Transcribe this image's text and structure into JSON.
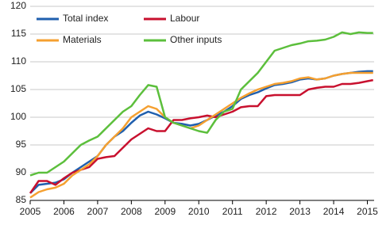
{
  "chart_data": {
    "type": "line",
    "x": [
      2005,
      2005.25,
      2005.5,
      2005.75,
      2006,
      2006.25,
      2006.5,
      2006.75,
      2007,
      2007.25,
      2007.5,
      2007.75,
      2008,
      2008.25,
      2008.5,
      2008.75,
      2009,
      2009.25,
      2009.5,
      2009.75,
      2010,
      2010.25,
      2010.5,
      2010.75,
      2011,
      2011.25,
      2011.5,
      2011.75,
      2012,
      2012.25,
      2012.5,
      2012.75,
      2013,
      2013.25,
      2013.5,
      2013.75,
      2014,
      2014.25,
      2014.5,
      2014.75,
      2015,
      2015.17
    ],
    "series": [
      {
        "name": "Total index",
        "color": "#1f5fae",
        "values": [
          86.3,
          87.8,
          88,
          88.2,
          88.8,
          90,
          91,
          92,
          93,
          95,
          96.5,
          97.5,
          99,
          100.3,
          101,
          100.5,
          99.8,
          99,
          98.8,
          98.5,
          98.8,
          99.5,
          100.3,
          101,
          102,
          103.3,
          104,
          104.5,
          105.2,
          105.8,
          106,
          106.3,
          106.8,
          107,
          106.8,
          107,
          107.5,
          107.8,
          108,
          108.2,
          108.3,
          108.3
        ]
      },
      {
        "name": "Labour",
        "color": "#c8102e",
        "values": [
          86.3,
          88.5,
          88.5,
          87.8,
          89,
          90,
          90.5,
          91,
          92.5,
          92.8,
          93,
          94.5,
          96,
          97,
          98,
          97.5,
          97.5,
          99.5,
          99.5,
          99.8,
          100,
          100.3,
          100,
          100.5,
          101,
          101.8,
          102,
          102,
          103.8,
          104,
          104,
          104,
          104,
          105,
          105.3,
          105.5,
          105.5,
          106,
          106,
          106.2,
          106.5,
          106.7
        ]
      },
      {
        "name": "Materials",
        "color": "#f5a030",
        "values": [
          85.5,
          86.5,
          87,
          87.3,
          88,
          89.5,
          90.5,
          91.5,
          93,
          95,
          96.5,
          98,
          100,
          101,
          102,
          101.5,
          100,
          99,
          98.5,
          98,
          98.5,
          99.5,
          100.5,
          101.5,
          102.5,
          103.5,
          104.3,
          105,
          105.5,
          106,
          106.2,
          106.5,
          107,
          107.2,
          106.8,
          107,
          107.5,
          107.8,
          108,
          108,
          108,
          108
        ]
      },
      {
        "name": "Other inputs",
        "color": "#5cbf3c",
        "values": [
          89.5,
          90,
          90,
          91,
          92,
          93.5,
          95,
          95.8,
          96.5,
          98,
          99.5,
          101,
          102,
          104,
          105.8,
          105.5,
          100,
          99,
          98.5,
          98,
          97.5,
          97.2,
          99.5,
          101,
          101.5,
          105,
          106.5,
          108,
          110,
          112,
          112.5,
          113,
          113.3,
          113.7,
          113.8,
          114,
          114.5,
          115.3,
          115,
          115.3,
          115.2,
          115.2
        ]
      }
    ],
    "xlim": [
      2005,
      2015.2
    ],
    "xticks": [
      2005,
      2006,
      2007,
      2008,
      2009,
      2010,
      2011,
      2012,
      2013,
      2014,
      2015
    ],
    "ylim": [
      85,
      120
    ],
    "yticks": [
      85,
      90,
      95,
      100,
      105,
      110,
      115,
      120
    ],
    "grid": true
  }
}
